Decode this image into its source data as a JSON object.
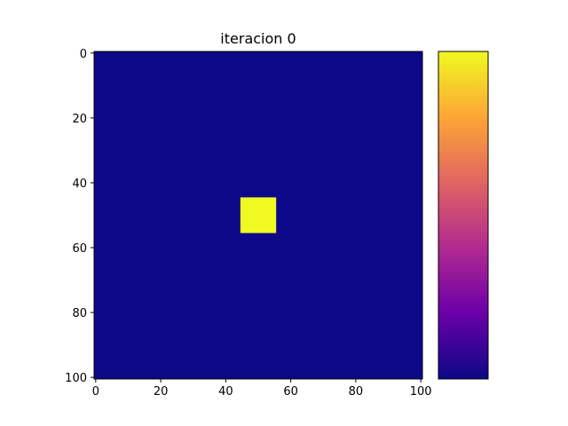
{
  "chart_data": {
    "type": "heatmap",
    "title": "iteracion 0",
    "xlabel": "",
    "ylabel": "",
    "grid": false,
    "x_ticks": [
      "0",
      "20",
      "40",
      "60",
      "80",
      "100"
    ],
    "y_ticks": [
      "0",
      "20",
      "40",
      "60",
      "80",
      "100"
    ],
    "x_range": [
      -0.5,
      100.5
    ],
    "y_range": [
      -0.5,
      100.5
    ],
    "y_axis_inverted": true,
    "colormap": "plasma",
    "background_value": 0,
    "square": {
      "x_start": 45,
      "x_end": 55,
      "y_start": 45,
      "y_end": 55,
      "value": 1
    },
    "colors": {
      "background": "#0d0887",
      "square": "#f0f921"
    },
    "colorbar": {
      "ticks": [],
      "stops": [
        "#f0f921",
        "#fca636",
        "#e16462",
        "#b12a90",
        "#6a00a8",
        "#0d0887"
      ]
    }
  }
}
